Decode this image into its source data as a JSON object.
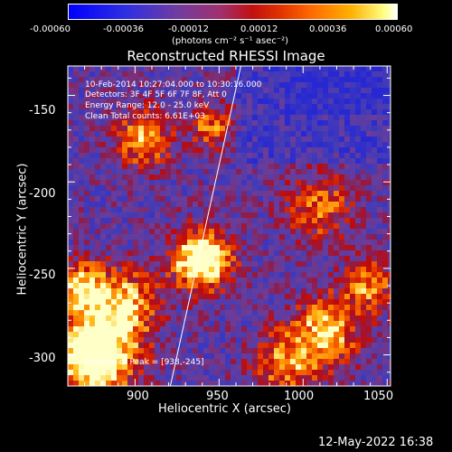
{
  "colorbar": {
    "ticks": [
      "-0.00060",
      "-0.00036",
      "-0.00012",
      "0.00012",
      "0.00036",
      "0.00060"
    ],
    "unit_label": "(photons cm⁻² s⁻¹ asec⁻²)"
  },
  "plot": {
    "title": "Reconstructed RHESSI Image",
    "xlabel": "Heliocentric X (arcsec)",
    "ylabel": "Heliocentric Y (arcsec)",
    "x_ticks": [
      "900",
      "950",
      "1000",
      "1050"
    ],
    "y_ticks": [
      "-150",
      "-200",
      "-250",
      "-300"
    ],
    "annotations": [
      "10-Feb-2014 10:27:04.000 to 10:30:16.000",
      "Detectors: 3F 4F 5F 6F 7F 8F, Att 0",
      "Energy Range: 12.0 - 25.0 keV",
      "Clean     Total counts: 6.61E+03"
    ],
    "peak_label": "Position of Peak = [938,-245]"
  },
  "footer": {
    "timestamp": "12-May-2022 16:38"
  },
  "chart_data": {
    "type": "heatmap",
    "title": "Reconstructed RHESSI Image",
    "xlabel": "Heliocentric X (arcsec)",
    "ylabel": "Heliocentric Y (arcsec)",
    "xlim": [
      860,
      1052
    ],
    "ylim": [
      -318,
      -133
    ],
    "colorbar_range": [
      -0.0006,
      0.0006
    ],
    "peak": [
      938,
      -245
    ],
    "limb_line": [
      [
        921,
        -318
      ],
      [
        963,
        -133
      ]
    ],
    "hotspots": [
      {
        "x": 940,
        "y": -245,
        "sigma": 12,
        "amp": 0.95
      },
      {
        "x": 875,
        "y": -300,
        "sigma": 18,
        "amp": 0.95
      },
      {
        "x": 868,
        "y": -260,
        "sigma": 10,
        "amp": 0.6
      },
      {
        "x": 905,
        "y": -175,
        "sigma": 12,
        "amp": 0.55
      },
      {
        "x": 945,
        "y": -168,
        "sigma": 9,
        "amp": 0.45
      },
      {
        "x": 1010,
        "y": -215,
        "sigma": 14,
        "amp": 0.45
      },
      {
        "x": 1015,
        "y": -285,
        "sigma": 14,
        "amp": 0.6
      },
      {
        "x": 895,
        "y": -270,
        "sigma": 14,
        "amp": 0.55
      },
      {
        "x": 990,
        "y": -305,
        "sigma": 14,
        "amp": 0.5
      },
      {
        "x": 1040,
        "y": -260,
        "sigma": 10,
        "amp": 0.5
      }
    ]
  }
}
